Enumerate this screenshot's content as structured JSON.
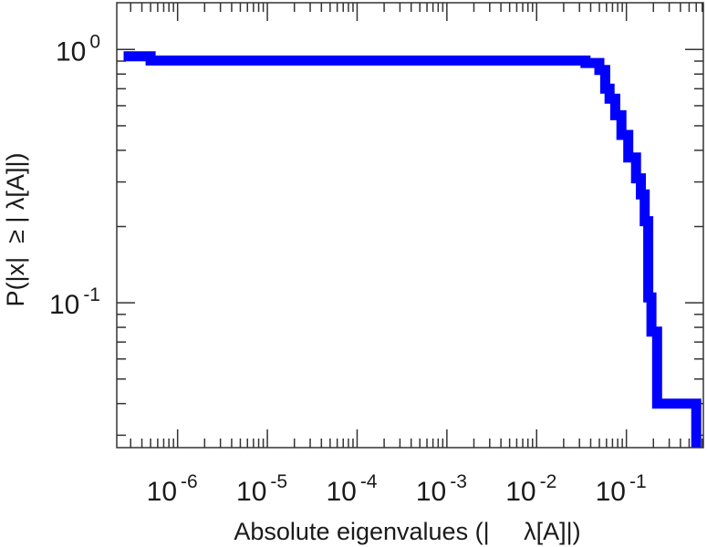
{
  "chart_data": {
    "type": "line",
    "title": "",
    "xlabel": "Absolute eigenvalues (|     λ[A]|)",
    "ylabel": "P(|x|  ≥ | λ[A]|)",
    "x_scale": "log",
    "y_scale": "log",
    "xlim": [
      2.1e-07,
      0.72
    ],
    "ylim": [
      0.0268,
      1.53
    ],
    "x_tick_labels": [
      {
        "base": "10",
        "exp": "-6",
        "value": 1e-06
      },
      {
        "base": "10",
        "exp": "-5",
        "value": 1e-05
      },
      {
        "base": "10",
        "exp": "-4",
        "value": 0.0001
      },
      {
        "base": "10",
        "exp": "-3",
        "value": 0.001
      },
      {
        "base": "10",
        "exp": "-2",
        "value": 0.01
      },
      {
        "base": "10",
        "exp": "-1",
        "value": 0.1
      }
    ],
    "y_tick_labels": [
      {
        "base": "10",
        "exp": "0",
        "value": 1
      },
      {
        "base": "10",
        "exp": "-1",
        "value": 0.1
      }
    ],
    "grid": false,
    "legend": "none",
    "series": [
      {
        "color": "#0000ff",
        "step": true,
        "x": [
          2.5e-07,
          5e-07,
          5e-07,
          0.035,
          0.035,
          0.05,
          0.05,
          0.058,
          0.058,
          0.065,
          0.065,
          0.075,
          0.075,
          0.088,
          0.088,
          0.105,
          0.105,
          0.128,
          0.128,
          0.145,
          0.145,
          0.16,
          0.16,
          0.175,
          0.175,
          0.19,
          0.19,
          0.22,
          0.22,
          0.6,
          0.6
        ],
        "y": [
          0.94,
          0.94,
          0.905,
          0.905,
          0.885,
          0.885,
          0.83,
          0.83,
          0.7,
          0.7,
          0.64,
          0.64,
          0.55,
          0.55,
          0.46,
          0.46,
          0.375,
          0.375,
          0.31,
          0.31,
          0.268,
          0.268,
          0.21,
          0.21,
          0.105,
          0.105,
          0.077,
          0.077,
          0.04,
          0.04,
          0.0268
        ]
      }
    ]
  }
}
